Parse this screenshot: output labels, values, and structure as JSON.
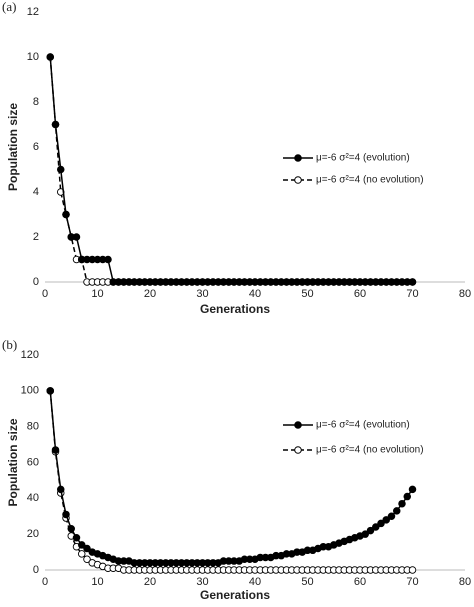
{
  "chart_data": [
    {
      "type": "line",
      "panel_label": "(a)",
      "xlabel": "Generations",
      "ylabel": "Population size",
      "xlim": [
        0,
        80
      ],
      "xticks": [
        0,
        10,
        20,
        30,
        40,
        50,
        60,
        70,
        80
      ],
      "ylim": [
        0,
        12
      ],
      "yticks": [
        0,
        2,
        4,
        6,
        8,
        10,
        12
      ],
      "grid": false,
      "legend": "right",
      "x": [
        1,
        2,
        3,
        4,
        5,
        6,
        7,
        8,
        9,
        10,
        11,
        12,
        13,
        14,
        15,
        16,
        17,
        18,
        19,
        20,
        21,
        22,
        23,
        24,
        25,
        26,
        27,
        28,
        29,
        30,
        31,
        32,
        33,
        34,
        35,
        36,
        37,
        38,
        39,
        40,
        41,
        42,
        43,
        44,
        45,
        46,
        47,
        48,
        49,
        50,
        51,
        52,
        53,
        54,
        55,
        56,
        57,
        58,
        59,
        60,
        61,
        62,
        63,
        64,
        65,
        66,
        67,
        68,
        69,
        70
      ],
      "series": [
        {
          "name": "μ=-6 σ²=4 (evolution)",
          "color": "#000000",
          "marker": "filled",
          "dashed": false,
          "values": [
            10,
            7,
            5,
            3,
            2,
            2,
            1,
            1,
            1,
            1,
            1,
            1,
            0,
            0,
            0,
            0,
            0,
            0,
            0,
            0,
            0,
            0,
            0,
            0,
            0,
            0,
            0,
            0,
            0,
            0,
            0,
            0,
            0,
            0,
            0,
            0,
            0,
            0,
            0,
            0,
            0,
            0,
            0,
            0,
            0,
            0,
            0,
            0,
            0,
            0,
            0,
            0,
            0,
            0,
            0,
            0,
            0,
            0,
            0,
            0,
            0,
            0,
            0,
            0,
            0,
            0,
            0,
            0,
            0,
            0
          ]
        },
        {
          "name": "μ=-6 σ²=4 (no evolution)",
          "color": "#000000",
          "marker": "open",
          "dashed": true,
          "values": [
            10,
            7,
            4,
            3,
            2,
            1,
            1,
            0,
            0,
            0,
            0,
            0,
            0,
            0,
            0,
            0,
            0,
            0,
            0,
            0,
            0,
            0,
            0,
            0,
            0,
            0,
            0,
            0,
            0,
            0,
            0,
            0,
            0,
            0,
            0,
            0,
            0,
            0,
            0,
            0,
            0,
            0,
            0,
            0,
            0,
            0,
            0,
            0,
            0,
            0,
            0,
            0,
            0,
            0,
            0,
            0,
            0,
            0,
            0,
            0,
            0,
            0,
            0,
            0,
            0,
            0,
            0,
            0,
            0,
            0
          ]
        }
      ]
    },
    {
      "type": "line",
      "panel_label": "(b)",
      "xlabel": "Generations",
      "ylabel": "Population size",
      "xlim": [
        0,
        80
      ],
      "xticks": [
        0,
        10,
        20,
        30,
        40,
        50,
        60,
        70,
        80
      ],
      "ylim": [
        0,
        120
      ],
      "yticks": [
        0,
        20,
        40,
        60,
        80,
        100,
        120
      ],
      "grid": false,
      "legend": "right",
      "x": [
        1,
        2,
        3,
        4,
        5,
        6,
        7,
        8,
        9,
        10,
        11,
        12,
        13,
        14,
        15,
        16,
        17,
        18,
        19,
        20,
        21,
        22,
        23,
        24,
        25,
        26,
        27,
        28,
        29,
        30,
        31,
        32,
        33,
        34,
        35,
        36,
        37,
        38,
        39,
        40,
        41,
        42,
        43,
        44,
        45,
        46,
        47,
        48,
        49,
        50,
        51,
        52,
        53,
        54,
        55,
        56,
        57,
        58,
        59,
        60,
        61,
        62,
        63,
        64,
        65,
        66,
        67,
        68,
        69,
        70
      ],
      "series": [
        {
          "name": "μ=-6 σ²=4 (evolution)",
          "color": "#000000",
          "marker": "filled",
          "dashed": false,
          "values": [
            100,
            67,
            45,
            31,
            23,
            18,
            14,
            12,
            10,
            9,
            8,
            7,
            6,
            5,
            5,
            5,
            4,
            4,
            4,
            4,
            4,
            4,
            4,
            4,
            4,
            4,
            4,
            4,
            4,
            4,
            4,
            4,
            4,
            5,
            5,
            5,
            5,
            6,
            6,
            6,
            7,
            7,
            7,
            8,
            8,
            9,
            9,
            10,
            10,
            11,
            11,
            12,
            13,
            13,
            14,
            15,
            16,
            17,
            18,
            19,
            20,
            22,
            24,
            26,
            28,
            30,
            33,
            37,
            41,
            45
          ]
        },
        {
          "name": "μ=-6 σ²=4 (no evolution)",
          "color": "#000000",
          "marker": "open",
          "dashed": true,
          "values": [
            100,
            66,
            43,
            29,
            19,
            13,
            9,
            6,
            4,
            3,
            2,
            1,
            1,
            1,
            0,
            0,
            0,
            0,
            0,
            0,
            0,
            0,
            0,
            0,
            0,
            0,
            0,
            0,
            0,
            0,
            0,
            0,
            0,
            0,
            0,
            0,
            0,
            0,
            0,
            0,
            0,
            0,
            0,
            0,
            0,
            0,
            0,
            0,
            0,
            0,
            0,
            0,
            0,
            0,
            0,
            0,
            0,
            0,
            0,
            0,
            0,
            0,
            0,
            0,
            0,
            0,
            0,
            0,
            0,
            0
          ]
        }
      ]
    }
  ]
}
